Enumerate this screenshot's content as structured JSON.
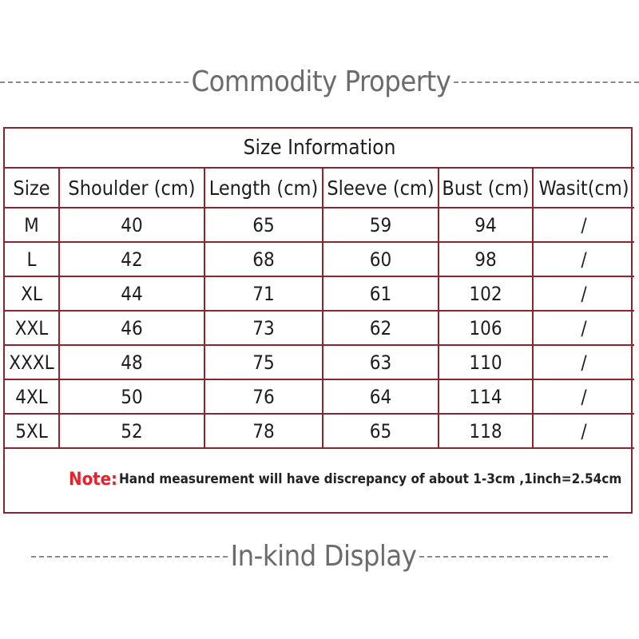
{
  "headings": {
    "top": "Commodity Property",
    "bottom": "In-kind Display"
  },
  "table": {
    "title": "Size Information",
    "columns": [
      "Size",
      "Shoulder (cm)",
      "Length (cm)",
      "Sleeve (cm)",
      "Bust (cm)",
      "Wasit(cm)"
    ],
    "rows": [
      [
        "M",
        "40",
        "65",
        "59",
        "94",
        "/"
      ],
      [
        "L",
        "42",
        "68",
        "60",
        "98",
        "/"
      ],
      [
        "XL",
        "44",
        "71",
        "61",
        "102",
        "/"
      ],
      [
        "XXL",
        "46",
        "73",
        "62",
        "106",
        "/"
      ],
      [
        "XXXL",
        "48",
        "75",
        "63",
        "110",
        "/"
      ],
      [
        "4XL",
        "50",
        "76",
        "64",
        "114",
        "/"
      ],
      [
        "5XL",
        "52",
        "78",
        "65",
        "118",
        "/"
      ]
    ]
  },
  "note": {
    "label": "Note:",
    "text": "Hand measurement will have discrepancy of about 1-3cm ,1inch=2.54cm"
  },
  "colors": {
    "border": "#8b2530",
    "note_label": "#e8202a",
    "heading": "#6b6b6b"
  }
}
